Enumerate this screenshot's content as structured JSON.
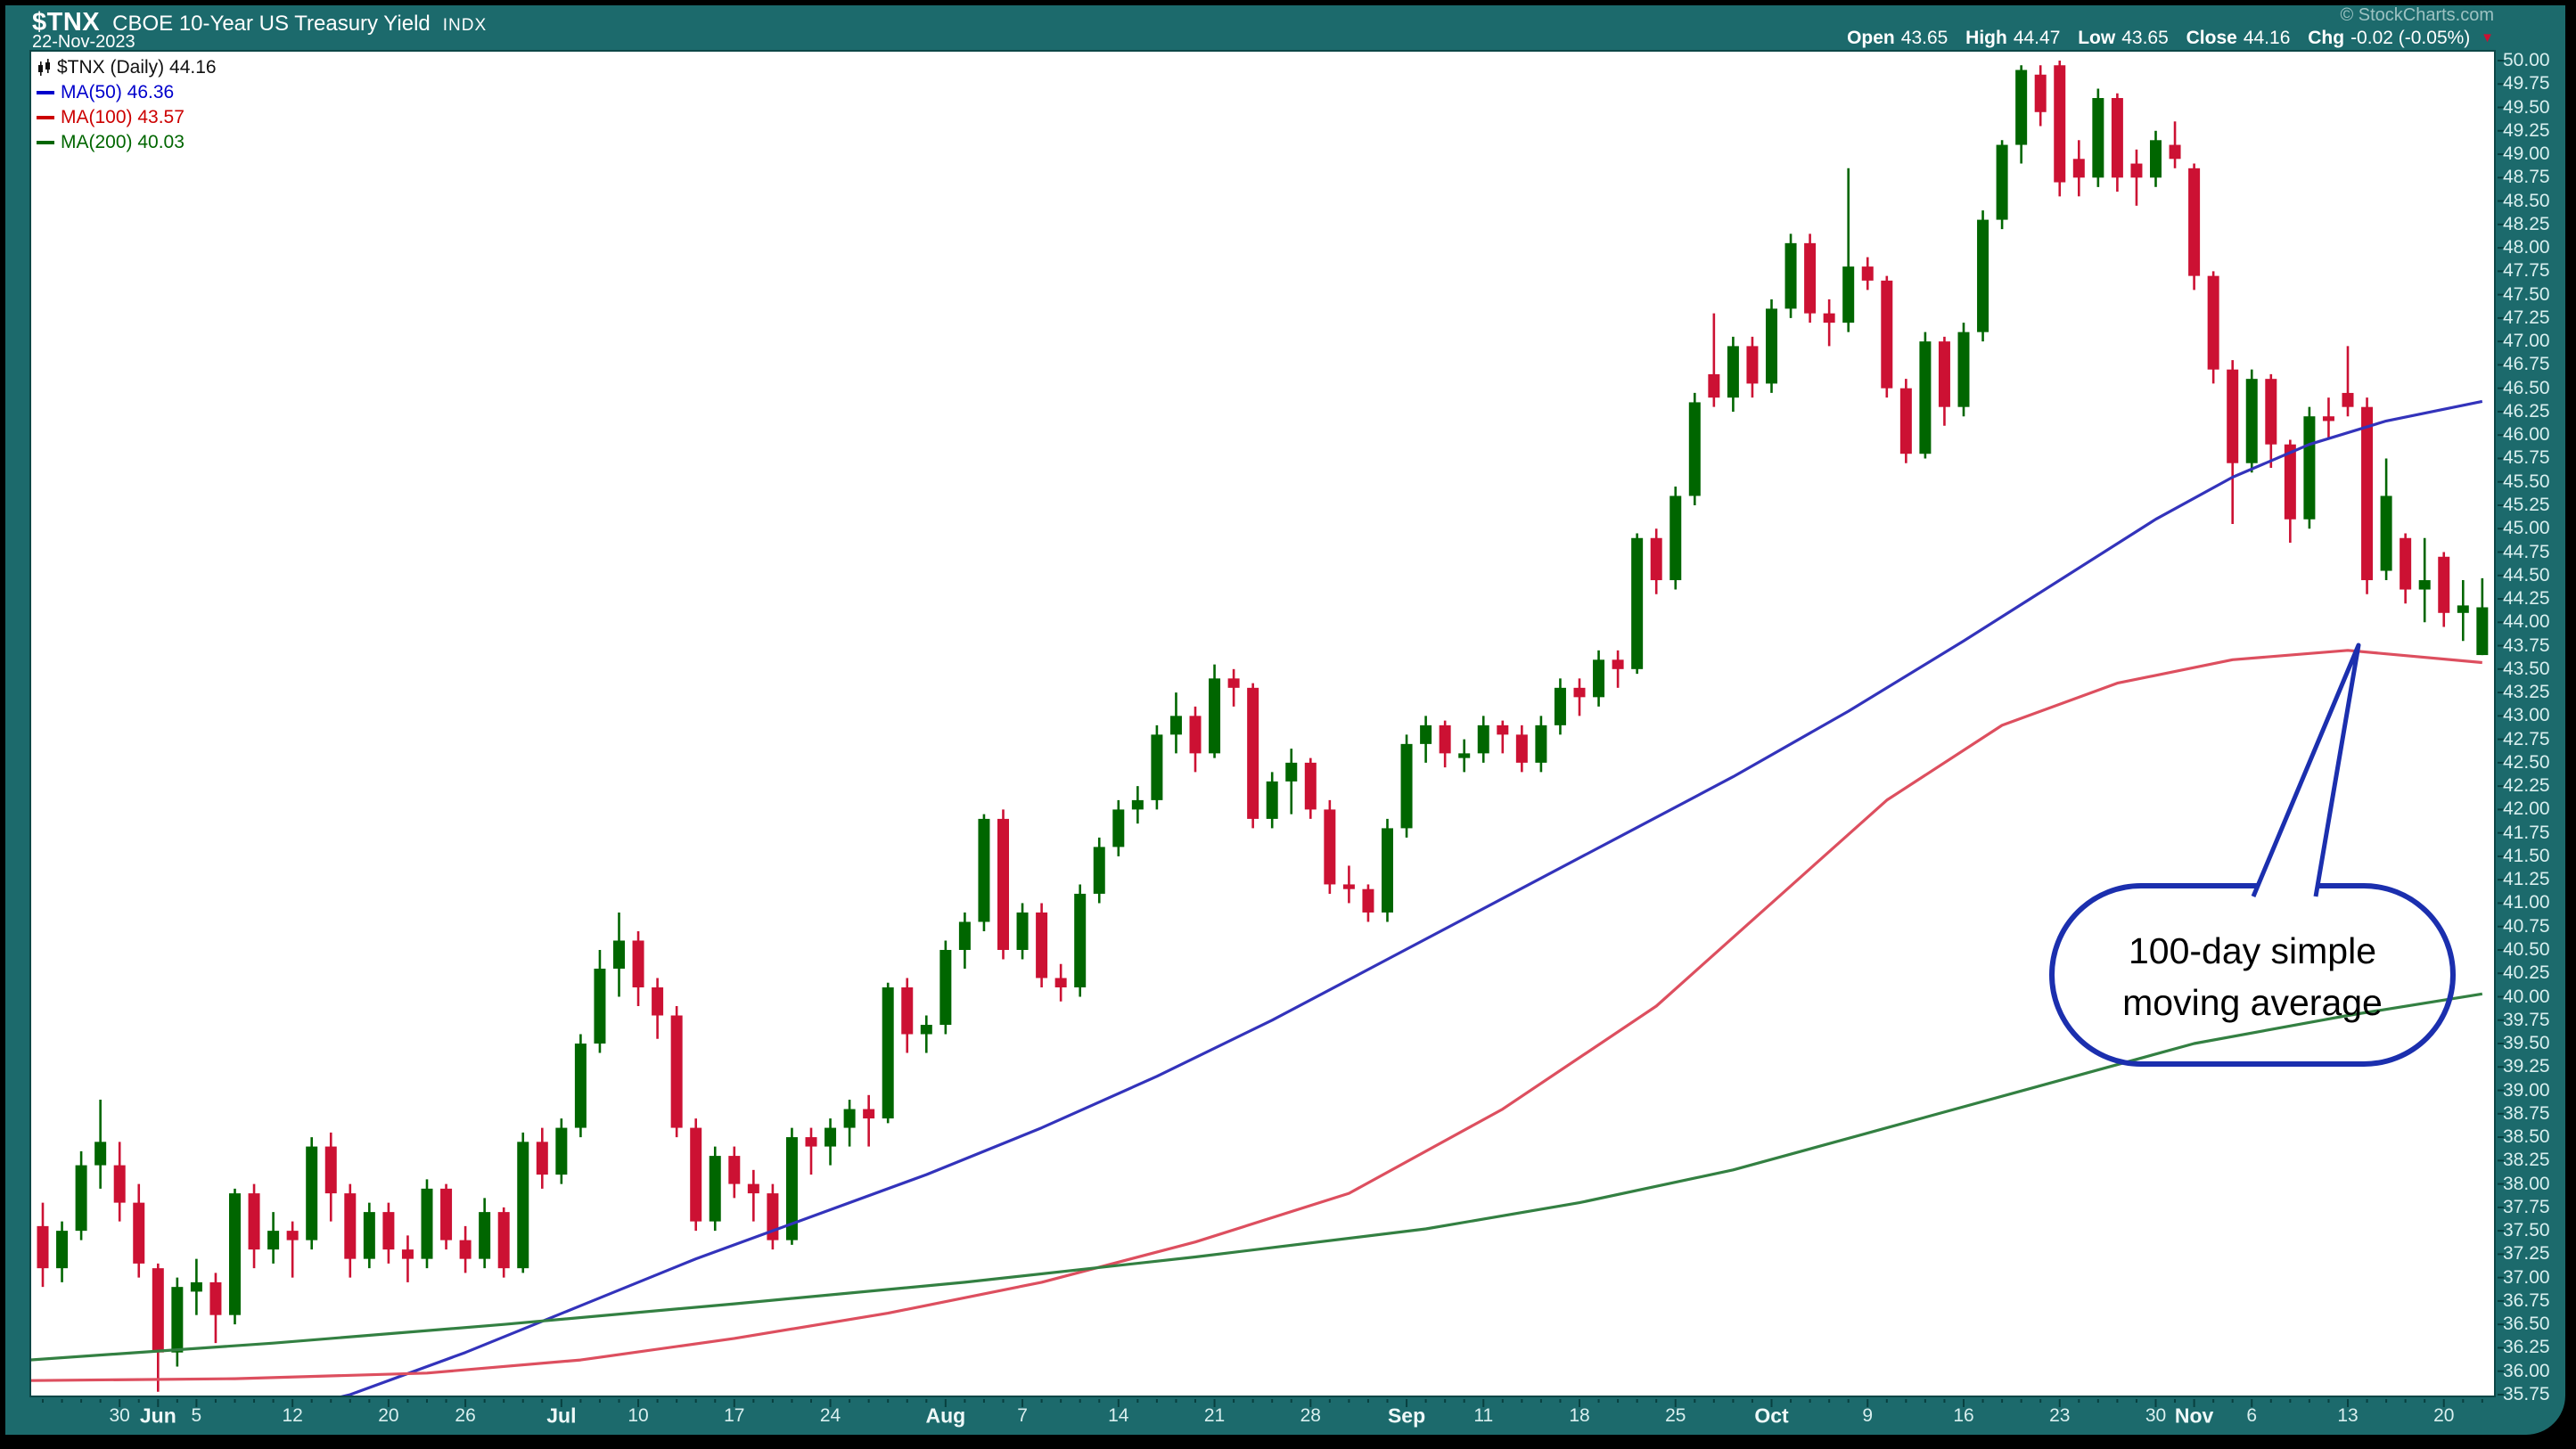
{
  "header": {
    "symbol": "$TNX",
    "name": "CBOE 10-Year US Treasury Yield",
    "suffix": "INDX",
    "date": "22-Nov-2023",
    "copyright": "© StockCharts.com"
  },
  "quote": {
    "open_label": "Open",
    "open": "43.65",
    "high_label": "High",
    "high": "44.47",
    "low_label": "Low",
    "low": "43.65",
    "close_label": "Close",
    "close": "44.16",
    "chg_label": "Chg",
    "chg": "-0.02 (-0.05%)",
    "arrow": "▼"
  },
  "legend": {
    "rows": [
      {
        "label": "$TNX (Daily) 44.16",
        "color": "#111111",
        "icon": "candlestick-icon"
      },
      {
        "label": "MA(50) 46.36",
        "color": "#0000cc",
        "swatch": "#0000cc"
      },
      {
        "label": "MA(100) 43.57",
        "color": "#cc0000",
        "swatch": "#cc0000"
      },
      {
        "label": "MA(200) 40.03",
        "color": "#006600",
        "swatch": "#006600"
      }
    ]
  },
  "colors": {
    "frame_teal": "#1c6a6c",
    "plot_bg": "#ffffff",
    "candle_up": "#006600",
    "candle_down": "#cc1133",
    "ma50": "#3333bb",
    "ma100": "#dd4f5f",
    "ma200": "#338042",
    "annotation_blue": "#1b2fae",
    "axis_text": "#d9efef",
    "tick": "#083f3f",
    "chg_arrow": "#cc1133"
  },
  "chart_data": {
    "type": "candlestick",
    "title": "$TNX (Daily)",
    "ylim": [
      35.75,
      50.0
    ],
    "y_tick_step": 0.25,
    "grid": false,
    "legend_position": "top-left",
    "last_quote": {
      "open": 43.65,
      "high": 44.47,
      "low": 43.65,
      "close": 44.16,
      "change": -0.02,
      "change_pct": "-0.05%"
    },
    "x_axis_labels": [
      {
        "label": "30",
        "idx": 4,
        "month": false
      },
      {
        "label": "Jun",
        "idx": 6,
        "month": true
      },
      {
        "label": "5",
        "idx": 8,
        "month": false
      },
      {
        "label": "12",
        "idx": 13,
        "month": false
      },
      {
        "label": "20",
        "idx": 18,
        "month": false
      },
      {
        "label": "26",
        "idx": 22,
        "month": false
      },
      {
        "label": "Jul",
        "idx": 27,
        "month": true
      },
      {
        "label": "10",
        "idx": 31,
        "month": false
      },
      {
        "label": "17",
        "idx": 36,
        "month": false
      },
      {
        "label": "24",
        "idx": 41,
        "month": false
      },
      {
        "label": "Aug",
        "idx": 47,
        "month": true
      },
      {
        "label": "7",
        "idx": 51,
        "month": false
      },
      {
        "label": "14",
        "idx": 56,
        "month": false
      },
      {
        "label": "21",
        "idx": 61,
        "month": false
      },
      {
        "label": "28",
        "idx": 66,
        "month": false
      },
      {
        "label": "Sep",
        "idx": 71,
        "month": true
      },
      {
        "label": "11",
        "idx": 75,
        "month": false
      },
      {
        "label": "18",
        "idx": 80,
        "month": false
      },
      {
        "label": "25",
        "idx": 85,
        "month": false
      },
      {
        "label": "Oct",
        "idx": 90,
        "month": true
      },
      {
        "label": "9",
        "idx": 95,
        "month": false
      },
      {
        "label": "16",
        "idx": 100,
        "month": false
      },
      {
        "label": "23",
        "idx": 105,
        "month": false
      },
      {
        "label": "30",
        "idx": 110,
        "month": false
      },
      {
        "label": "Nov",
        "idx": 112,
        "month": true
      },
      {
        "label": "6",
        "idx": 115,
        "month": false
      },
      {
        "label": "13",
        "idx": 120,
        "month": false
      },
      {
        "label": "20",
        "idx": 125,
        "month": false
      }
    ],
    "candles": [
      [
        "05-23",
        37.55,
        37.8,
        36.9,
        37.1
      ],
      [
        "05-24",
        37.1,
        37.6,
        36.95,
        37.5
      ],
      [
        "05-25",
        37.5,
        38.35,
        37.4,
        38.2
      ],
      [
        "05-26",
        38.2,
        38.9,
        37.95,
        38.45
      ],
      [
        "05-30",
        38.2,
        38.45,
        37.6,
        37.8
      ],
      [
        "05-31",
        37.8,
        38.0,
        37.0,
        37.15
      ],
      [
        "06-01",
        37.1,
        37.15,
        35.78,
        36.2
      ],
      [
        "06-02",
        36.2,
        37.0,
        36.05,
        36.9
      ],
      [
        "06-05",
        36.85,
        37.2,
        36.6,
        36.95
      ],
      [
        "06-06",
        36.95,
        37.05,
        36.3,
        36.6
      ],
      [
        "06-07",
        36.6,
        37.95,
        36.5,
        37.9
      ],
      [
        "06-08",
        37.9,
        38.0,
        37.1,
        37.3
      ],
      [
        "06-09",
        37.3,
        37.7,
        37.15,
        37.5
      ],
      [
        "06-12",
        37.5,
        37.6,
        37.0,
        37.4
      ],
      [
        "06-13",
        37.4,
        38.5,
        37.3,
        38.4
      ],
      [
        "06-14",
        38.4,
        38.55,
        37.6,
        37.9
      ],
      [
        "06-15",
        37.9,
        38.0,
        37.0,
        37.2
      ],
      [
        "06-16",
        37.2,
        37.8,
        37.1,
        37.7
      ],
      [
        "06-20",
        37.7,
        37.8,
        37.15,
        37.3
      ],
      [
        "06-21",
        37.3,
        37.45,
        36.95,
        37.2
      ],
      [
        "06-22",
        37.2,
        38.05,
        37.1,
        37.95
      ],
      [
        "06-23",
        37.95,
        38.0,
        37.3,
        37.4
      ],
      [
        "06-26",
        37.4,
        37.55,
        37.05,
        37.2
      ],
      [
        "06-27",
        37.2,
        37.85,
        37.1,
        37.7
      ],
      [
        "06-28",
        37.7,
        37.75,
        37.0,
        37.1
      ],
      [
        "06-29",
        37.1,
        38.55,
        37.05,
        38.45
      ],
      [
        "06-30",
        38.45,
        38.6,
        37.95,
        38.1
      ],
      [
        "07-03",
        38.1,
        38.7,
        38.0,
        38.6
      ],
      [
        "07-05",
        38.6,
        39.6,
        38.5,
        39.5
      ],
      [
        "07-06",
        39.5,
        40.5,
        39.4,
        40.3
      ],
      [
        "07-07",
        40.3,
        40.9,
        40.0,
        40.6
      ],
      [
        "07-10",
        40.6,
        40.7,
        39.9,
        40.1
      ],
      [
        "07-11",
        40.1,
        40.2,
        39.55,
        39.8
      ],
      [
        "07-12",
        39.8,
        39.9,
        38.5,
        38.6
      ],
      [
        "07-13",
        38.6,
        38.7,
        37.5,
        37.6
      ],
      [
        "07-14",
        37.6,
        38.4,
        37.5,
        38.3
      ],
      [
        "07-17",
        38.3,
        38.4,
        37.85,
        38.0
      ],
      [
        "07-18",
        38.0,
        38.15,
        37.6,
        37.9
      ],
      [
        "07-19",
        37.9,
        38.0,
        37.3,
        37.4
      ],
      [
        "07-20",
        37.4,
        38.6,
        37.35,
        38.5
      ],
      [
        "07-21",
        38.5,
        38.6,
        38.1,
        38.4
      ],
      [
        "07-24",
        38.4,
        38.7,
        38.2,
        38.6
      ],
      [
        "07-25",
        38.6,
        38.9,
        38.4,
        38.8
      ],
      [
        "07-26",
        38.8,
        38.95,
        38.4,
        38.7
      ],
      [
        "07-27",
        38.7,
        40.15,
        38.65,
        40.1
      ],
      [
        "07-28",
        40.1,
        40.2,
        39.4,
        39.6
      ],
      [
        "07-31",
        39.6,
        39.8,
        39.4,
        39.7
      ],
      [
        "08-01",
        39.7,
        40.6,
        39.6,
        40.5
      ],
      [
        "08-02",
        40.5,
        40.9,
        40.3,
        40.8
      ],
      [
        "08-03",
        40.8,
        41.95,
        40.7,
        41.9
      ],
      [
        "08-04",
        41.9,
        42.0,
        40.4,
        40.5
      ],
      [
        "08-07",
        40.5,
        41.0,
        40.4,
        40.9
      ],
      [
        "08-08",
        40.9,
        41.0,
        40.1,
        40.2
      ],
      [
        "08-09",
        40.2,
        40.35,
        39.95,
        40.1
      ],
      [
        "08-10",
        40.1,
        41.2,
        40.0,
        41.1
      ],
      [
        "08-11",
        41.1,
        41.7,
        41.0,
        41.6
      ],
      [
        "08-14",
        41.6,
        42.1,
        41.5,
        42.0
      ],
      [
        "08-15",
        42.0,
        42.25,
        41.85,
        42.1
      ],
      [
        "08-16",
        42.1,
        42.9,
        42.0,
        42.8
      ],
      [
        "08-17",
        42.8,
        43.25,
        42.6,
        43.0
      ],
      [
        "08-18",
        43.0,
        43.1,
        42.4,
        42.6
      ],
      [
        "08-21",
        42.6,
        43.55,
        42.55,
        43.4
      ],
      [
        "08-22",
        43.4,
        43.5,
        43.1,
        43.3
      ],
      [
        "08-23",
        43.3,
        43.35,
        41.8,
        41.9
      ],
      [
        "08-24",
        41.9,
        42.4,
        41.8,
        42.3
      ],
      [
        "08-25",
        42.3,
        42.65,
        41.95,
        42.5
      ],
      [
        "08-28",
        42.5,
        42.55,
        41.9,
        42.0
      ],
      [
        "08-29",
        42.0,
        42.1,
        41.1,
        41.2
      ],
      [
        "08-30",
        41.2,
        41.4,
        41.0,
        41.15
      ],
      [
        "08-31",
        41.15,
        41.2,
        40.8,
        40.9
      ],
      [
        "09-01",
        40.9,
        41.9,
        40.8,
        41.8
      ],
      [
        "09-05",
        41.8,
        42.8,
        41.7,
        42.7
      ],
      [
        "09-06",
        42.7,
        43.0,
        42.5,
        42.9
      ],
      [
        "09-07",
        42.9,
        42.95,
        42.45,
        42.6
      ],
      [
        "09-08",
        42.55,
        42.75,
        42.4,
        42.6
      ],
      [
        "09-11",
        42.6,
        43.0,
        42.5,
        42.9
      ],
      [
        "09-12",
        42.9,
        42.95,
        42.6,
        42.8
      ],
      [
        "09-13",
        42.8,
        42.9,
        42.4,
        42.5
      ],
      [
        "09-14",
        42.5,
        43.0,
        42.4,
        42.9
      ],
      [
        "09-15",
        42.9,
        43.4,
        42.8,
        43.3
      ],
      [
        "09-18",
        43.3,
        43.4,
        43.0,
        43.2
      ],
      [
        "09-19",
        43.2,
        43.7,
        43.1,
        43.6
      ],
      [
        "09-20",
        43.6,
        43.7,
        43.3,
        43.5
      ],
      [
        "09-21",
        43.5,
        44.95,
        43.45,
        44.9
      ],
      [
        "09-22",
        44.9,
        45.0,
        44.3,
        44.45
      ],
      [
        "09-25",
        44.45,
        45.45,
        44.35,
        45.35
      ],
      [
        "09-26",
        45.35,
        46.45,
        45.25,
        46.35
      ],
      [
        "09-27",
        46.65,
        47.3,
        46.3,
        46.4
      ],
      [
        "09-28",
        46.4,
        47.05,
        46.25,
        46.95
      ],
      [
        "09-29",
        46.95,
        47.05,
        46.4,
        46.55
      ],
      [
        "10-02",
        46.55,
        47.45,
        46.45,
        47.35
      ],
      [
        "10-03",
        47.35,
        48.15,
        47.25,
        48.05
      ],
      [
        "10-04",
        48.05,
        48.15,
        47.2,
        47.3
      ],
      [
        "10-05",
        47.3,
        47.45,
        46.95,
        47.2
      ],
      [
        "10-06",
        47.2,
        48.85,
        47.1,
        47.8
      ],
      [
        "10-09",
        47.8,
        47.9,
        47.55,
        47.65
      ],
      [
        "10-10",
        47.65,
        47.7,
        46.4,
        46.5
      ],
      [
        "10-11",
        46.5,
        46.6,
        45.7,
        45.8
      ],
      [
        "10-12",
        45.8,
        47.1,
        45.75,
        47.0
      ],
      [
        "10-13",
        47.0,
        47.05,
        46.1,
        46.3
      ],
      [
        "10-16",
        46.3,
        47.2,
        46.2,
        47.1
      ],
      [
        "10-17",
        47.1,
        48.4,
        47.0,
        48.3
      ],
      [
        "10-18",
        48.3,
        49.15,
        48.2,
        49.1
      ],
      [
        "10-19",
        49.1,
        49.95,
        48.9,
        49.9
      ],
      [
        "10-20",
        49.85,
        49.95,
        49.3,
        49.45
      ],
      [
        "10-23",
        49.95,
        50.0,
        48.55,
        48.7
      ],
      [
        "10-24",
        48.95,
        49.15,
        48.55,
        48.75
      ],
      [
        "10-25",
        48.75,
        49.7,
        48.65,
        49.6
      ],
      [
        "10-26",
        49.6,
        49.65,
        48.6,
        48.75
      ],
      [
        "10-27",
        48.9,
        49.05,
        48.45,
        48.75
      ],
      [
        "10-30",
        48.75,
        49.25,
        48.65,
        49.15
      ],
      [
        "10-31",
        49.1,
        49.35,
        48.85,
        48.95
      ],
      [
        "11-01",
        48.85,
        48.9,
        47.55,
        47.7
      ],
      [
        "11-02",
        47.7,
        47.75,
        46.55,
        46.7
      ],
      [
        "11-03",
        46.7,
        46.8,
        45.05,
        45.7
      ],
      [
        "11-06",
        45.7,
        46.7,
        45.6,
        46.6
      ],
      [
        "11-07",
        46.6,
        46.65,
        45.65,
        45.9
      ],
      [
        "11-08",
        45.9,
        45.95,
        44.85,
        45.1
      ],
      [
        "11-09",
        45.1,
        46.3,
        45.0,
        46.2
      ],
      [
        "11-10",
        46.2,
        46.4,
        45.95,
        46.15
      ],
      [
        "11-13",
        46.45,
        46.95,
        46.2,
        46.3
      ],
      [
        "11-14",
        46.3,
        46.4,
        44.3,
        44.45
      ],
      [
        "11-15",
        44.55,
        45.75,
        44.45,
        45.35
      ],
      [
        "11-16",
        44.9,
        44.95,
        44.2,
        44.35
      ],
      [
        "11-17",
        44.35,
        44.9,
        44.0,
        44.45
      ],
      [
        "11-20",
        44.7,
        44.75,
        43.95,
        44.1
      ],
      [
        "11-21",
        44.1,
        44.45,
        43.8,
        44.18
      ],
      [
        "11-22",
        43.65,
        44.47,
        43.65,
        44.16
      ]
    ],
    "overlays": [
      {
        "name": "MA(50)",
        "period": 50,
        "last_value": 46.36,
        "color": "#3333bb",
        "points": [
          [
            0,
            35.05
          ],
          [
            10,
            35.45
          ],
          [
            16,
            35.75
          ],
          [
            22,
            36.2
          ],
          [
            28,
            36.7
          ],
          [
            34,
            37.2
          ],
          [
            40,
            37.65
          ],
          [
            46,
            38.1
          ],
          [
            52,
            38.6
          ],
          [
            58,
            39.15
          ],
          [
            64,
            39.75
          ],
          [
            70,
            40.4
          ],
          [
            76,
            41.05
          ],
          [
            82,
            41.7
          ],
          [
            88,
            42.35
          ],
          [
            94,
            43.05
          ],
          [
            100,
            43.8
          ],
          [
            105,
            44.45
          ],
          [
            110,
            45.1
          ],
          [
            114,
            45.55
          ],
          [
            118,
            45.9
          ],
          [
            122,
            46.15
          ],
          [
            127,
            46.36
          ]
        ]
      },
      {
        "name": "MA(100)",
        "period": 100,
        "last_value": 43.57,
        "color": "#dd4f5f",
        "points": [
          [
            0,
            35.9
          ],
          [
            10,
            35.92
          ],
          [
            20,
            35.98
          ],
          [
            28,
            36.12
          ],
          [
            36,
            36.35
          ],
          [
            44,
            36.62
          ],
          [
            52,
            36.95
          ],
          [
            60,
            37.38
          ],
          [
            68,
            37.9
          ],
          [
            76,
            38.8
          ],
          [
            84,
            39.9
          ],
          [
            90,
            41.0
          ],
          [
            96,
            42.1
          ],
          [
            102,
            42.9
          ],
          [
            108,
            43.35
          ],
          [
            114,
            43.6
          ],
          [
            120,
            43.7
          ],
          [
            127,
            43.57
          ]
        ]
      },
      {
        "name": "MA(200)",
        "period": 200,
        "last_value": 40.03,
        "color": "#338042",
        "points": [
          [
            0,
            36.12
          ],
          [
            12,
            36.3
          ],
          [
            24,
            36.5
          ],
          [
            36,
            36.72
          ],
          [
            48,
            36.95
          ],
          [
            60,
            37.22
          ],
          [
            72,
            37.52
          ],
          [
            80,
            37.8
          ],
          [
            88,
            38.15
          ],
          [
            96,
            38.6
          ],
          [
            104,
            39.05
          ],
          [
            112,
            39.5
          ],
          [
            120,
            39.8
          ],
          [
            127,
            40.03
          ]
        ]
      }
    ],
    "annotation": {
      "line1": "100-day simple",
      "line2": "moving average"
    }
  }
}
